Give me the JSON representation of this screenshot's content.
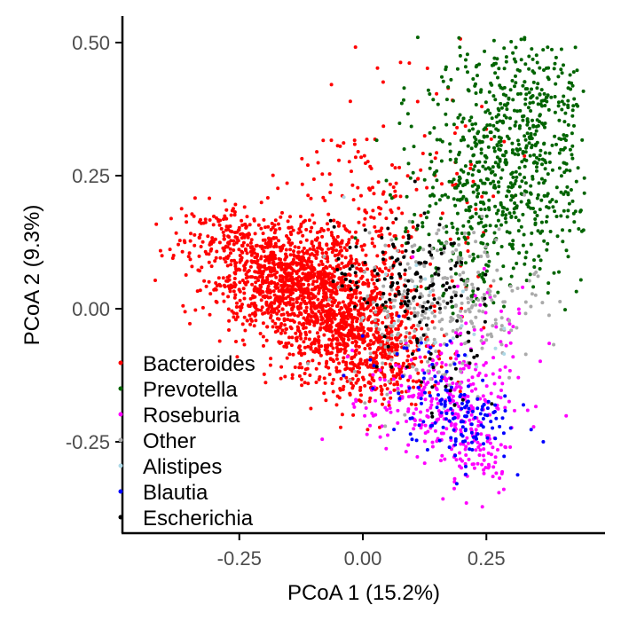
{
  "chart_data": {
    "type": "scatter",
    "xlabel": "PCoA 1 (15.2%)",
    "ylabel": "PCoA 2 (9.3%)",
    "xlim": [
      -0.46,
      0.48
    ],
    "ylim": [
      -0.42,
      0.55
    ],
    "x_ticks": [
      {
        "value": -0.25,
        "label": "-0.25"
      },
      {
        "value": 0.0,
        "label": "0.00"
      },
      {
        "value": 0.25,
        "label": "0.25"
      }
    ],
    "y_ticks": [
      {
        "value": 0.5,
        "label": "0.50"
      },
      {
        "value": 0.25,
        "label": "0.25"
      },
      {
        "value": 0.0,
        "label": "0.00"
      },
      {
        "value": -0.25,
        "label": "-0.25"
      }
    ],
    "grid": false,
    "legend_position": "bottom-left",
    "series": [
      {
        "name": "Bacteroides",
        "color": "#ff0000",
        "clusters": [
          {
            "cx": -0.16,
            "cy": 0.06,
            "sx": 0.08,
            "sy": 0.05,
            "n": 900
          },
          {
            "cx": -0.05,
            "cy": -0.02,
            "sx": 0.07,
            "sy": 0.06,
            "n": 700
          },
          {
            "cx": 0.03,
            "cy": -0.08,
            "sx": 0.06,
            "sy": 0.05,
            "n": 350
          },
          {
            "cx": -0.3,
            "cy": 0.14,
            "sx": 0.06,
            "sy": 0.03,
            "n": 120
          },
          {
            "cx": 0.05,
            "cy": 0.18,
            "sx": 0.1,
            "sy": 0.12,
            "n": 220
          }
        ]
      },
      {
        "name": "Prevotella",
        "color": "#006400",
        "clusters": [
          {
            "cx": 0.3,
            "cy": 0.28,
            "sx": 0.09,
            "sy": 0.1,
            "n": 650
          },
          {
            "cx": 0.22,
            "cy": 0.12,
            "sx": 0.08,
            "sy": 0.07,
            "n": 120
          },
          {
            "cx": 0.32,
            "cy": 0.42,
            "sx": 0.07,
            "sy": 0.06,
            "n": 100
          }
        ]
      },
      {
        "name": "Roseburia",
        "color": "#ff00ff",
        "clusters": [
          {
            "cx": 0.15,
            "cy": -0.17,
            "sx": 0.07,
            "sy": 0.05,
            "n": 260
          },
          {
            "cx": 0.23,
            "cy": -0.27,
            "sx": 0.04,
            "sy": 0.04,
            "n": 90
          },
          {
            "cx": 0.27,
            "cy": -0.05,
            "sx": 0.05,
            "sy": 0.07,
            "n": 40
          }
        ]
      },
      {
        "name": "Other",
        "color": "#aaaaaa",
        "clusters": [
          {
            "cx": 0.14,
            "cy": -0.01,
            "sx": 0.09,
            "sy": 0.07,
            "n": 200
          },
          {
            "cx": 0.2,
            "cy": 0.05,
            "sx": 0.08,
            "sy": 0.06,
            "n": 80
          }
        ]
      },
      {
        "name": "Alistipes",
        "color": "#add8e6",
        "clusters": [
          {
            "cx": 0.12,
            "cy": -0.04,
            "sx": 0.08,
            "sy": 0.07,
            "n": 25
          }
        ]
      },
      {
        "name": "Blautia",
        "color": "#0000ff",
        "clusters": [
          {
            "cx": 0.2,
            "cy": -0.21,
            "sx": 0.05,
            "sy": 0.04,
            "n": 110
          },
          {
            "cx": 0.12,
            "cy": -0.12,
            "sx": 0.07,
            "sy": 0.05,
            "n": 40
          }
        ]
      },
      {
        "name": "Escherichia",
        "color": "#000000",
        "clusters": [
          {
            "cx": 0.08,
            "cy": 0.06,
            "sx": 0.07,
            "sy": 0.05,
            "n": 130
          },
          {
            "cx": 0.16,
            "cy": -0.08,
            "sx": 0.06,
            "sy": 0.06,
            "n": 40
          }
        ]
      }
    ]
  }
}
